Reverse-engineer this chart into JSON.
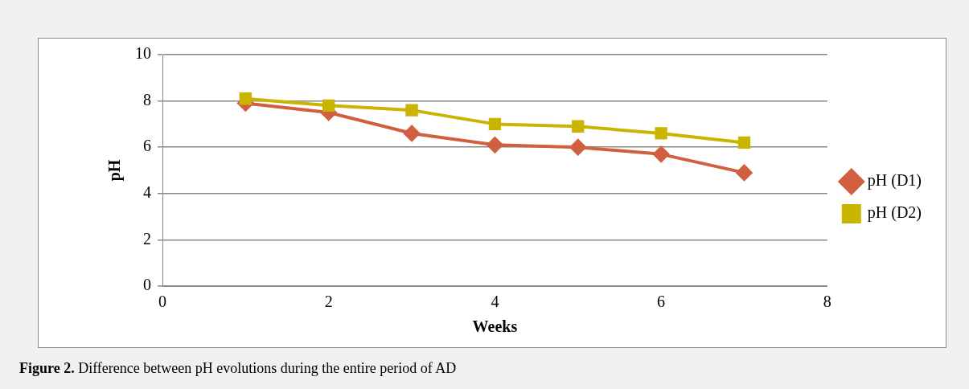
{
  "chart_data": {
    "type": "line",
    "xlabel": "Weeks",
    "ylabel": "pH",
    "x": [
      1,
      2,
      3,
      4,
      5,
      6,
      7
    ],
    "series": [
      {
        "name": "pH (D1)",
        "color": "#d0603f",
        "marker": "diamond",
        "values": [
          7.9,
          7.5,
          6.6,
          6.1,
          6.0,
          5.7,
          4.9
        ]
      },
      {
        "name": "pH (D2)",
        "color": "#c9b400",
        "marker": "square",
        "values": [
          8.1,
          7.8,
          7.6,
          7.0,
          6.9,
          6.6,
          6.2
        ]
      }
    ],
    "xlim": [
      0,
      8
    ],
    "xticks": [
      0,
      2,
      4,
      6,
      8
    ],
    "ylim": [
      0,
      10
    ],
    "yticks": [
      0,
      2,
      4,
      6,
      8,
      10
    ],
    "grid": "y",
    "legend": "right",
    "line_style": "solid",
    "annotations": [
      "Figure 2. Difference between pH evolutions during the entire period of AD"
    ]
  }
}
